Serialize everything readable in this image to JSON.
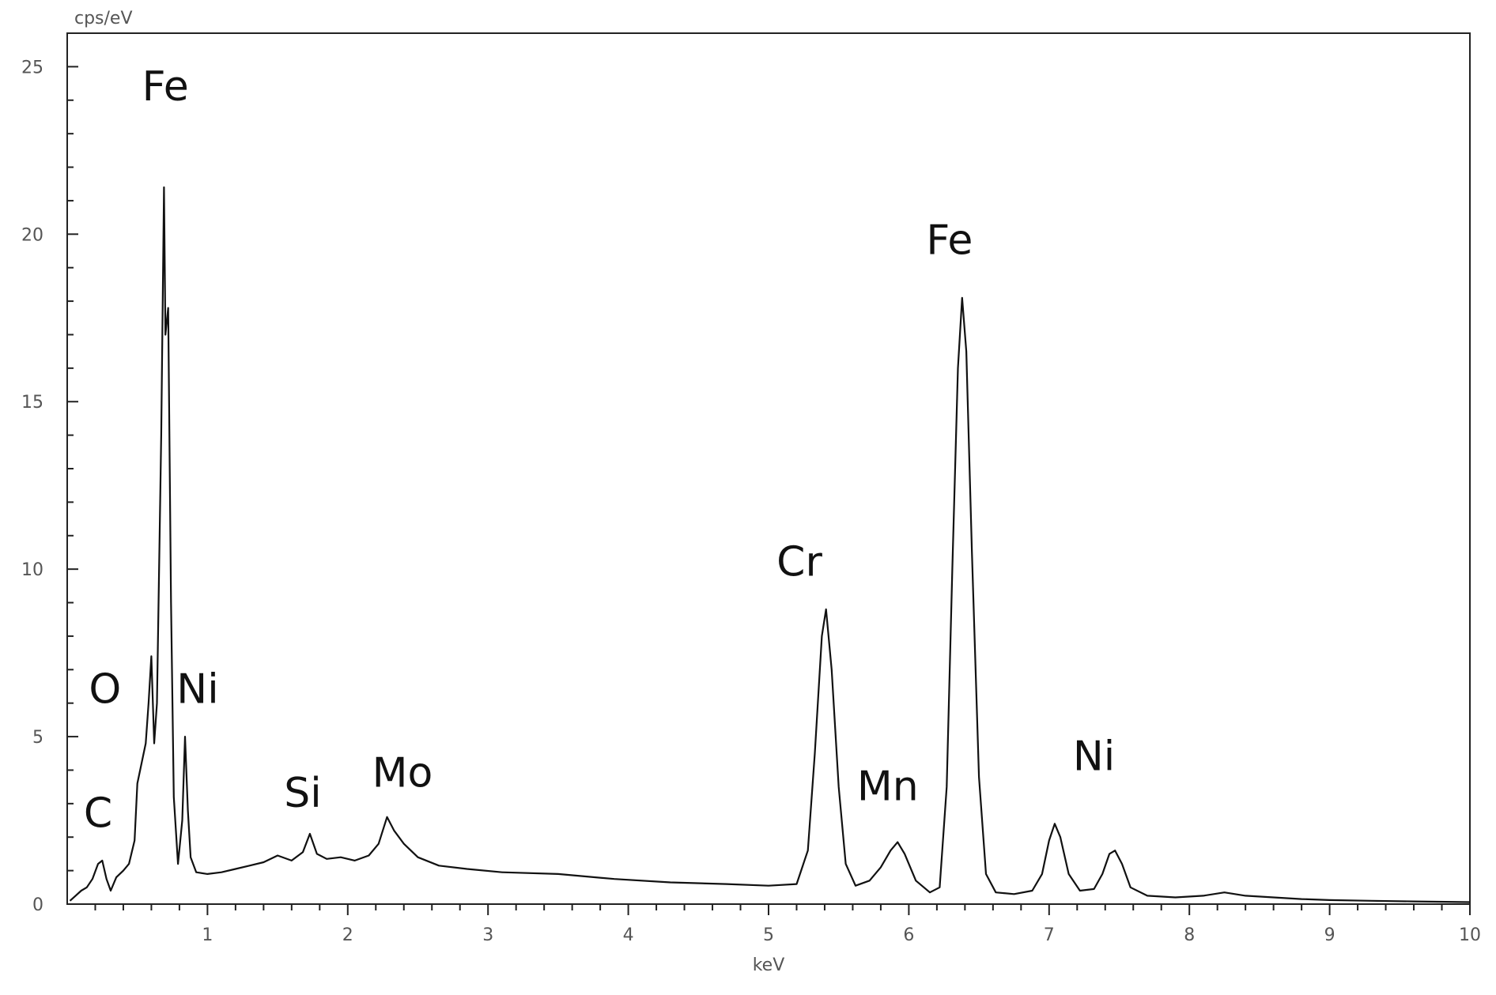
{
  "chart_data": {
    "type": "line",
    "title": "",
    "xlabel": "keV",
    "ylabel": "cps/eV",
    "xlim": [
      0,
      10
    ],
    "ylim": [
      0,
      26
    ],
    "x_ticks": [
      1,
      2,
      3,
      4,
      5,
      6,
      7,
      8,
      9,
      10
    ],
    "y_ticks": [
      0,
      5,
      10,
      15,
      20,
      25
    ],
    "grid": false,
    "legend": "none",
    "line_color": "#111111",
    "series": [
      {
        "values": [
          [
            0.02,
            0.1
          ],
          [
            0.06,
            0.25
          ],
          [
            0.1,
            0.4
          ],
          [
            0.14,
            0.5
          ],
          [
            0.18,
            0.75
          ],
          [
            0.22,
            1.2
          ],
          [
            0.25,
            1.3
          ],
          [
            0.28,
            0.75
          ],
          [
            0.31,
            0.4
          ],
          [
            0.35,
            0.8
          ],
          [
            0.4,
            1.0
          ],
          [
            0.44,
            1.2
          ],
          [
            0.48,
            1.9
          ],
          [
            0.5,
            3.6
          ],
          [
            0.53,
            4.2
          ],
          [
            0.56,
            4.8
          ],
          [
            0.58,
            6.0
          ],
          [
            0.6,
            7.4
          ],
          [
            0.62,
            4.8
          ],
          [
            0.64,
            6.0
          ],
          [
            0.67,
            14.0
          ],
          [
            0.69,
            21.4
          ],
          [
            0.7,
            17.0
          ],
          [
            0.72,
            17.8
          ],
          [
            0.74,
            9.0
          ],
          [
            0.76,
            3.2
          ],
          [
            0.79,
            1.2
          ],
          [
            0.82,
            2.5
          ],
          [
            0.84,
            5.0
          ],
          [
            0.86,
            2.8
          ],
          [
            0.88,
            1.4
          ],
          [
            0.92,
            0.95
          ],
          [
            1.0,
            0.9
          ],
          [
            1.1,
            0.95
          ],
          [
            1.2,
            1.05
          ],
          [
            1.3,
            1.15
          ],
          [
            1.4,
            1.25
          ],
          [
            1.5,
            1.45
          ],
          [
            1.6,
            1.3
          ],
          [
            1.68,
            1.55
          ],
          [
            1.73,
            2.1
          ],
          [
            1.78,
            1.5
          ],
          [
            1.85,
            1.35
          ],
          [
            1.95,
            1.4
          ],
          [
            2.05,
            1.3
          ],
          [
            2.15,
            1.45
          ],
          [
            2.22,
            1.8
          ],
          [
            2.28,
            2.6
          ],
          [
            2.33,
            2.2
          ],
          [
            2.4,
            1.8
          ],
          [
            2.5,
            1.4
          ],
          [
            2.65,
            1.15
          ],
          [
            2.85,
            1.05
          ],
          [
            3.1,
            0.95
          ],
          [
            3.5,
            0.9
          ],
          [
            3.9,
            0.75
          ],
          [
            4.3,
            0.65
          ],
          [
            4.7,
            0.6
          ],
          [
            5.0,
            0.55
          ],
          [
            5.2,
            0.6
          ],
          [
            5.28,
            1.6
          ],
          [
            5.33,
            4.5
          ],
          [
            5.38,
            8.0
          ],
          [
            5.41,
            8.8
          ],
          [
            5.45,
            7.0
          ],
          [
            5.5,
            3.5
          ],
          [
            5.55,
            1.2
          ],
          [
            5.62,
            0.55
          ],
          [
            5.72,
            0.7
          ],
          [
            5.8,
            1.1
          ],
          [
            5.87,
            1.6
          ],
          [
            5.92,
            1.85
          ],
          [
            5.97,
            1.5
          ],
          [
            6.05,
            0.7
          ],
          [
            6.15,
            0.35
          ],
          [
            6.22,
            0.5
          ],
          [
            6.27,
            3.5
          ],
          [
            6.31,
            10.0
          ],
          [
            6.35,
            16.0
          ],
          [
            6.38,
            18.1
          ],
          [
            6.41,
            16.5
          ],
          [
            6.45,
            10.5
          ],
          [
            6.5,
            3.8
          ],
          [
            6.55,
            0.9
          ],
          [
            6.62,
            0.35
          ],
          [
            6.75,
            0.3
          ],
          [
            6.88,
            0.4
          ],
          [
            6.95,
            0.9
          ],
          [
            7.0,
            1.9
          ],
          [
            7.04,
            2.4
          ],
          [
            7.08,
            2.0
          ],
          [
            7.14,
            0.9
          ],
          [
            7.22,
            0.4
          ],
          [
            7.32,
            0.45
          ],
          [
            7.38,
            0.9
          ],
          [
            7.43,
            1.5
          ],
          [
            7.47,
            1.6
          ],
          [
            7.52,
            1.2
          ],
          [
            7.58,
            0.5
          ],
          [
            7.7,
            0.25
          ],
          [
            7.9,
            0.2
          ],
          [
            8.1,
            0.25
          ],
          [
            8.25,
            0.35
          ],
          [
            8.4,
            0.25
          ],
          [
            8.6,
            0.2
          ],
          [
            8.8,
            0.15
          ],
          [
            9.0,
            0.12
          ],
          [
            9.3,
            0.1
          ],
          [
            9.6,
            0.08
          ],
          [
            10.0,
            0.06
          ]
        ]
      }
    ],
    "annotations": [
      {
        "text": "Fe",
        "x": 0.7,
        "y": 24.0
      },
      {
        "text": "O",
        "x": 0.27,
        "y": 6.0
      },
      {
        "text": "Ni",
        "x": 0.93,
        "y": 6.0
      },
      {
        "text": "C",
        "x": 0.22,
        "y": 2.3
      },
      {
        "text": "Si",
        "x": 1.68,
        "y": 2.9
      },
      {
        "text": "Mo",
        "x": 2.39,
        "y": 3.5
      },
      {
        "text": "Cr",
        "x": 5.22,
        "y": 9.8
      },
      {
        "text": "Mn",
        "x": 5.85,
        "y": 3.1
      },
      {
        "text": "Fe",
        "x": 6.29,
        "y": 19.4
      },
      {
        "text": "Ni",
        "x": 7.32,
        "y": 4.0
      }
    ]
  }
}
